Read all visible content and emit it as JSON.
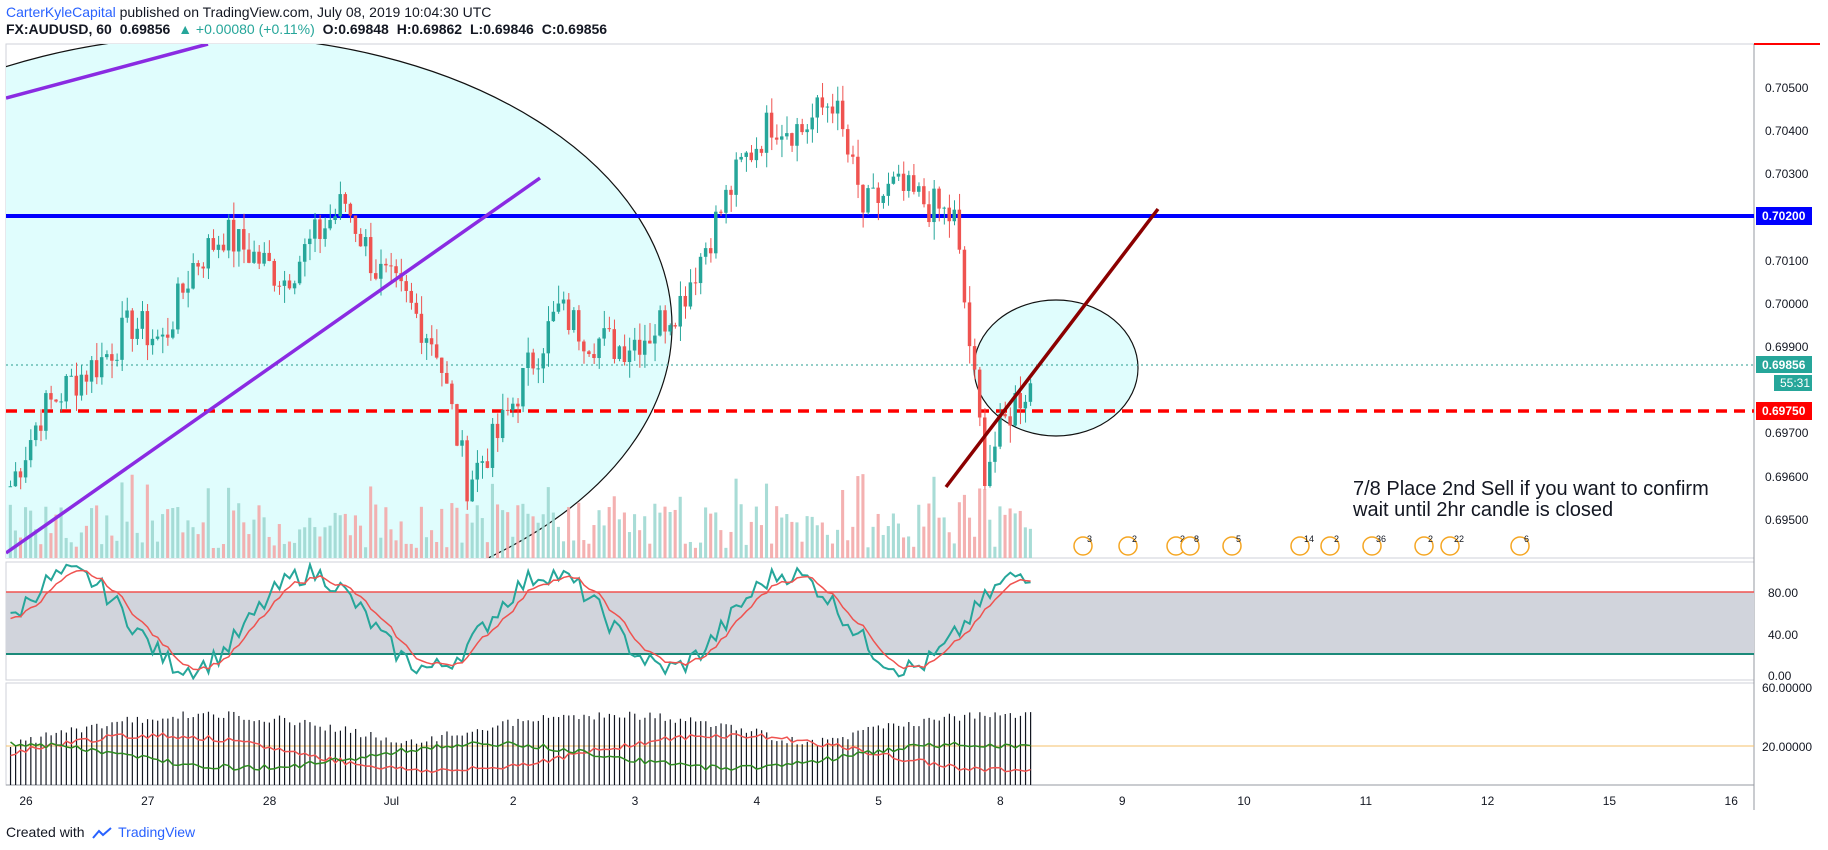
{
  "header": {
    "author": "CarterKyleCapital",
    "published": "published on TradingView.com, July 08, 2019 10:04:30 UTC"
  },
  "legend": {
    "symbol": "FX:AUDUSD, 60",
    "last": "0.69856",
    "change": "▲ +0.00080 (+0.11%)",
    "open": "O:0.69848",
    "high": "H:0.69862",
    "low": "L:0.69846",
    "close": "C:0.69856"
  },
  "annotation": {
    "line1": "7/8 Place 2nd Sell if you want to confirm",
    "line2": "wait until 2hr candle is closed"
  },
  "price_axis": {
    "ticks": [
      "0.70500",
      "0.70400",
      "0.70300",
      "0.70100",
      "0.70000",
      "0.69900",
      "0.69700",
      "0.69600",
      "0.69500"
    ],
    "tag_resistance": "0.70200",
    "tag_current": "0.69856",
    "tag_countdown": "55:31",
    "tag_support": "0.69750"
  },
  "stoch_axis": {
    "ticks": [
      "80.00",
      "40.00",
      "0.00"
    ]
  },
  "dmi_axis": {
    "ticks": [
      "60.00000",
      "20.00000"
    ]
  },
  "time_axis": {
    "labels": [
      "26",
      "27",
      "28",
      "Jul",
      "2",
      "3",
      "4",
      "5",
      "8",
      "9",
      "10",
      "11",
      "12",
      "15",
      "16"
    ]
  },
  "events": [
    "3",
    "2",
    "2",
    "8",
    "5",
    "14",
    "2",
    "36",
    "2",
    "22",
    "6"
  ],
  "footer": {
    "created": "Created with",
    "brand": "TradingView"
  },
  "colors": {
    "up": "#26a69a",
    "down": "#ef5350",
    "resistance": "#0000ff",
    "support": "#ff0000",
    "trend_purple": "#8a2be2",
    "trend_red": "#8b0000",
    "zone_fill": "#e0fdfd",
    "stoch_band": "#d1d4dc"
  },
  "chart_data": {
    "type": "line",
    "symbol": "FX:AUDUSD",
    "interval": "60",
    "ylim": [
      0.6943,
      0.7057
    ],
    "levels": {
      "resistance": 0.702,
      "support": 0.6975,
      "current": 0.69856
    },
    "series": [
      {
        "x": [
          "26",
          "",
          "",
          "",
          "27",
          "",
          "",
          "",
          "28",
          "",
          "",
          "",
          "Jul",
          "",
          "",
          "",
          "2",
          "",
          "",
          "",
          "3",
          "",
          "",
          "",
          "4",
          "",
          "",
          "",
          "5",
          "",
          "",
          "",
          "8",
          "",
          ""
        ],
        "values": [
          0.6959,
          0.6975,
          0.6982,
          0.6987,
          0.6995,
          0.6991,
          0.7008,
          0.7015,
          0.701,
          0.7005,
          0.7014,
          0.7022,
          0.7007,
          0.7,
          0.699,
          0.696,
          0.697,
          0.6985,
          0.6998,
          0.6992,
          0.699,
          0.6993,
          0.7,
          0.7015,
          0.703,
          0.704,
          0.7038,
          0.7045,
          0.702,
          0.7025,
          0.7022,
          0.7018,
          0.6963,
          0.6978,
          0.6985
        ]
      }
    ],
    "stochastic": {
      "ylim": [
        0,
        100
      ],
      "upper": 80,
      "lower": 20
    },
    "dmi": {
      "reference": 20
    }
  }
}
